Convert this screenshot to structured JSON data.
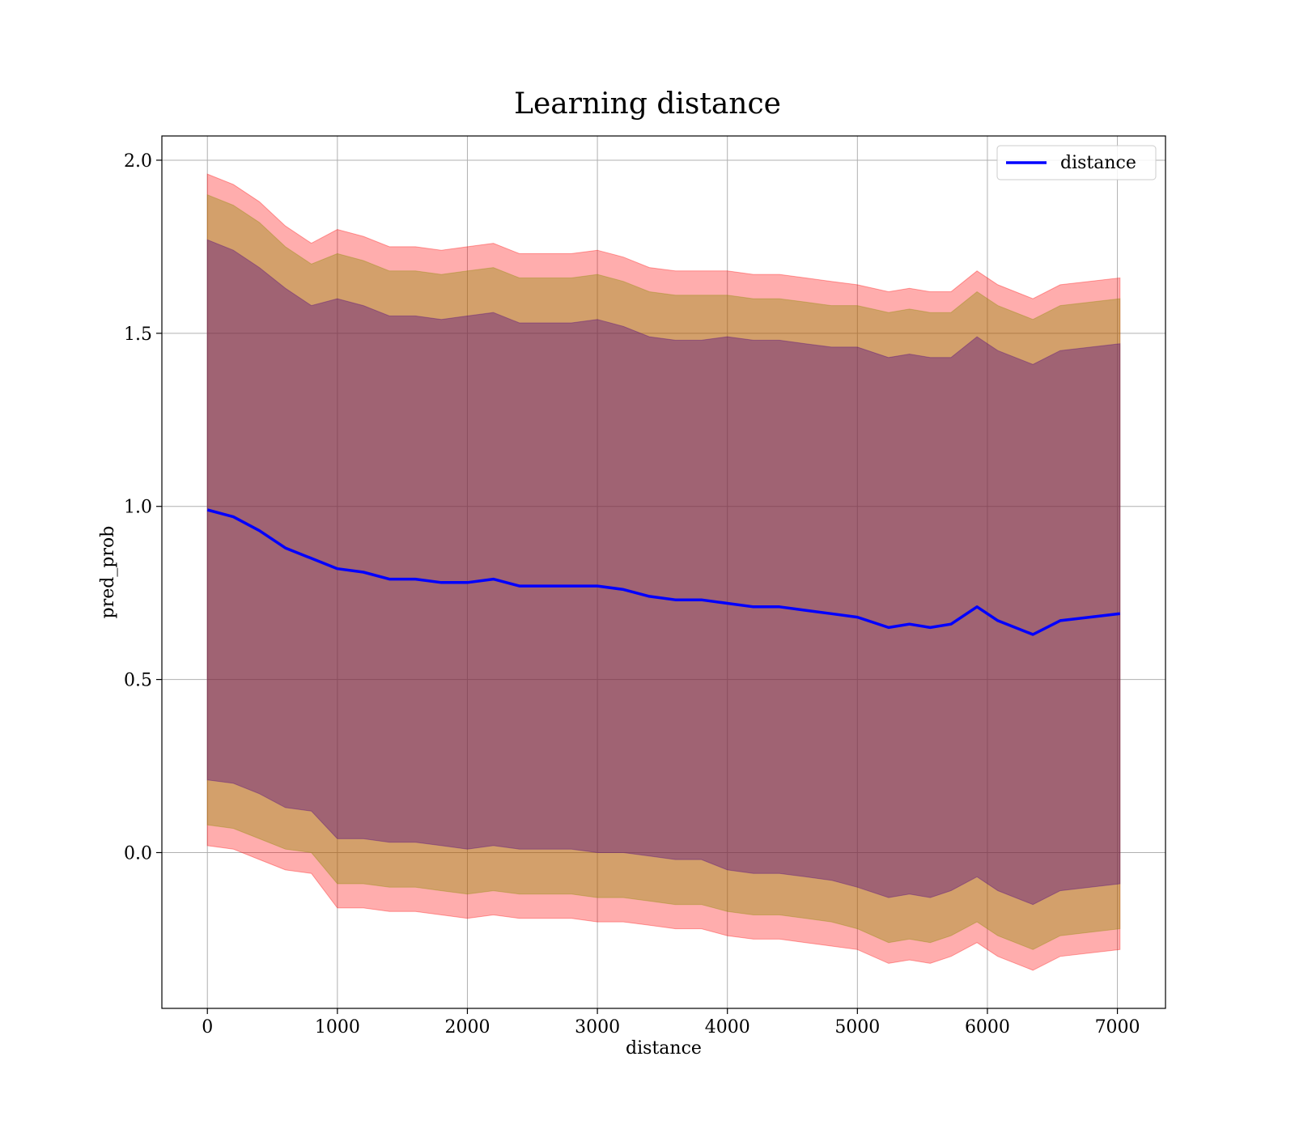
{
  "chart_data": {
    "type": "line",
    "title": "Learning distance",
    "xlabel": "distance",
    "ylabel": "pred_prob",
    "xlim": [
      -350,
      7370
    ],
    "ylim": [
      -0.45,
      2.07
    ],
    "xticks": [
      0,
      1000,
      2000,
      3000,
      4000,
      5000,
      6000,
      7000
    ],
    "yticks": [
      0.0,
      0.5,
      1.0,
      1.5,
      2.0
    ],
    "xtick_labels": [
      "0",
      "1000",
      "2000",
      "3000",
      "4000",
      "5000",
      "6000",
      "7000"
    ],
    "ytick_labels": [
      "0.0",
      "0.5",
      "1.0",
      "1.5",
      "2.0"
    ],
    "grid": true,
    "legend": {
      "position": "top-right",
      "entries": [
        "distance"
      ]
    },
    "colors": {
      "line": "#0000ff",
      "band_outer": "#ff0000",
      "band_mid": "#8b8b00",
      "band_inner": "#4b0082"
    },
    "series": [
      {
        "name": "distance",
        "x": [
          0,
          200,
          400,
          600,
          800,
          1000,
          1200,
          1400,
          1600,
          1800,
          2000,
          2200,
          2400,
          2600,
          2800,
          3000,
          3200,
          3400,
          3600,
          3800,
          4000,
          4200,
          4400,
          4600,
          4800,
          5000,
          5240,
          5400,
          5560,
          5720,
          5920,
          6080,
          6350,
          6560,
          7020
        ],
        "values": [
          0.99,
          0.97,
          0.93,
          0.88,
          0.85,
          0.82,
          0.81,
          0.79,
          0.79,
          0.78,
          0.78,
          0.79,
          0.77,
          0.77,
          0.77,
          0.77,
          0.76,
          0.74,
          0.73,
          0.73,
          0.72,
          0.71,
          0.71,
          0.7,
          0.69,
          0.68,
          0.65,
          0.66,
          0.65,
          0.66,
          0.71,
          0.67,
          0.63,
          0.67,
          0.69
        ]
      }
    ],
    "bands": [
      {
        "sigma": 3,
        "half_width": [
          0.97,
          0.96,
          0.95,
          0.93,
          0.91,
          0.98,
          0.97,
          0.96,
          0.96,
          0.96,
          0.97,
          0.97,
          0.96,
          0.96,
          0.96,
          0.97,
          0.96,
          0.95,
          0.95,
          0.95,
          0.96,
          0.96,
          0.96,
          0.96,
          0.96,
          0.96,
          0.97,
          0.97,
          0.97,
          0.96,
          0.97,
          0.97,
          0.97,
          0.97,
          0.97
        ]
      },
      {
        "sigma": 2,
        "half_width": [
          0.91,
          0.9,
          0.89,
          0.87,
          0.85,
          0.91,
          0.9,
          0.89,
          0.89,
          0.89,
          0.9,
          0.9,
          0.89,
          0.89,
          0.89,
          0.9,
          0.89,
          0.88,
          0.88,
          0.88,
          0.89,
          0.89,
          0.89,
          0.89,
          0.89,
          0.9,
          0.91,
          0.91,
          0.91,
          0.9,
          0.91,
          0.91,
          0.91,
          0.91,
          0.91
        ]
      },
      {
        "sigma": 1,
        "half_width": [
          0.78,
          0.77,
          0.76,
          0.75,
          0.73,
          0.78,
          0.77,
          0.76,
          0.76,
          0.76,
          0.77,
          0.77,
          0.76,
          0.76,
          0.76,
          0.77,
          0.76,
          0.75,
          0.75,
          0.75,
          0.77,
          0.77,
          0.77,
          0.77,
          0.77,
          0.78,
          0.78,
          0.78,
          0.78,
          0.77,
          0.78,
          0.78,
          0.78,
          0.78,
          0.78
        ]
      }
    ]
  }
}
